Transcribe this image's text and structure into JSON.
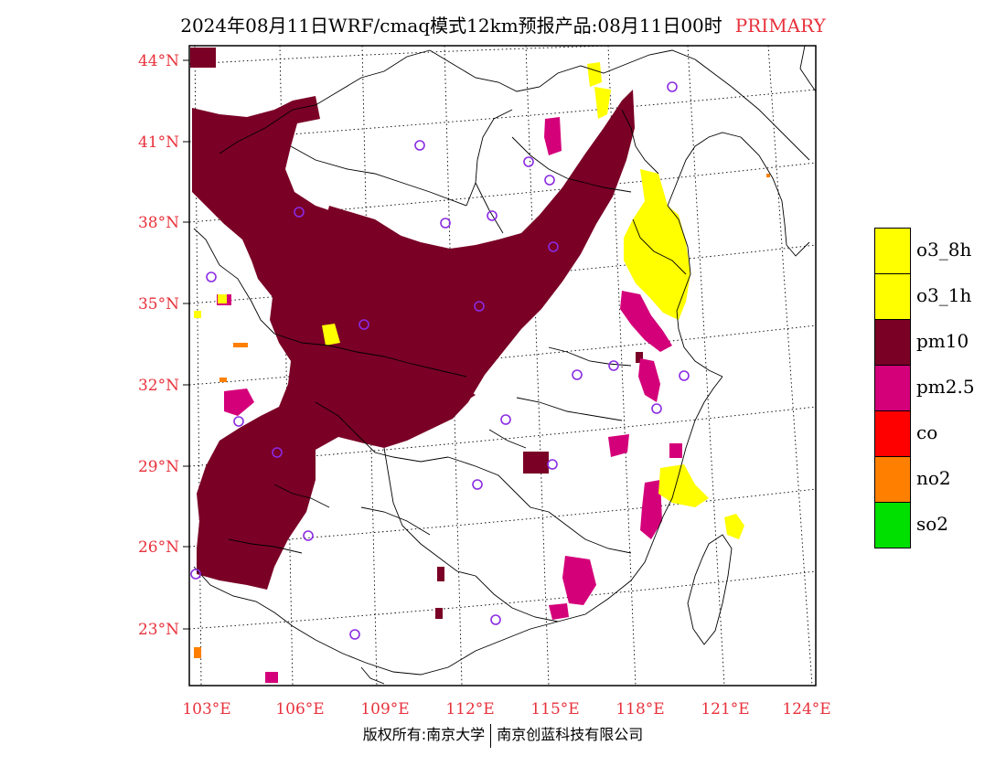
{
  "title": {
    "main": "2024年08月11日WRF/cmaq模式12km预报产品:08月11日00时",
    "tag": "PRIMARY"
  },
  "footer": {
    "left": "版权所有:南京大学",
    "right": "南京创蓝科技有限公司"
  },
  "axes": {
    "lat_labels": [
      "44°N",
      "41°N",
      "38°N",
      "35°N",
      "32°N",
      "29°N",
      "26°N",
      "23°N"
    ],
    "lon_labels": [
      "103°E",
      "106°E",
      "109°E",
      "112°E",
      "115°E",
      "118°E",
      "121°E",
      "124°E"
    ],
    "label_color": "#e8323c"
  },
  "legend": [
    {
      "label": "o3_8h",
      "color": "#ffff00"
    },
    {
      "label": "o3_1h",
      "color": "#ffff00"
    },
    {
      "label": "pm10",
      "color": "#7a0026"
    },
    {
      "label": "pm2.5",
      "color": "#d4007a"
    },
    {
      "label": "co",
      "color": "#ff0000"
    },
    {
      "label": "no2",
      "color": "#ff8000"
    },
    {
      "label": "so2",
      "color": "#00e000"
    }
  ],
  "colors": {
    "pm10": "#7a0026",
    "pm25": "#d4007a",
    "o3": "#ffff00",
    "no2": "#ff8000",
    "station": "#8a2be2",
    "border": "#000000"
  }
}
